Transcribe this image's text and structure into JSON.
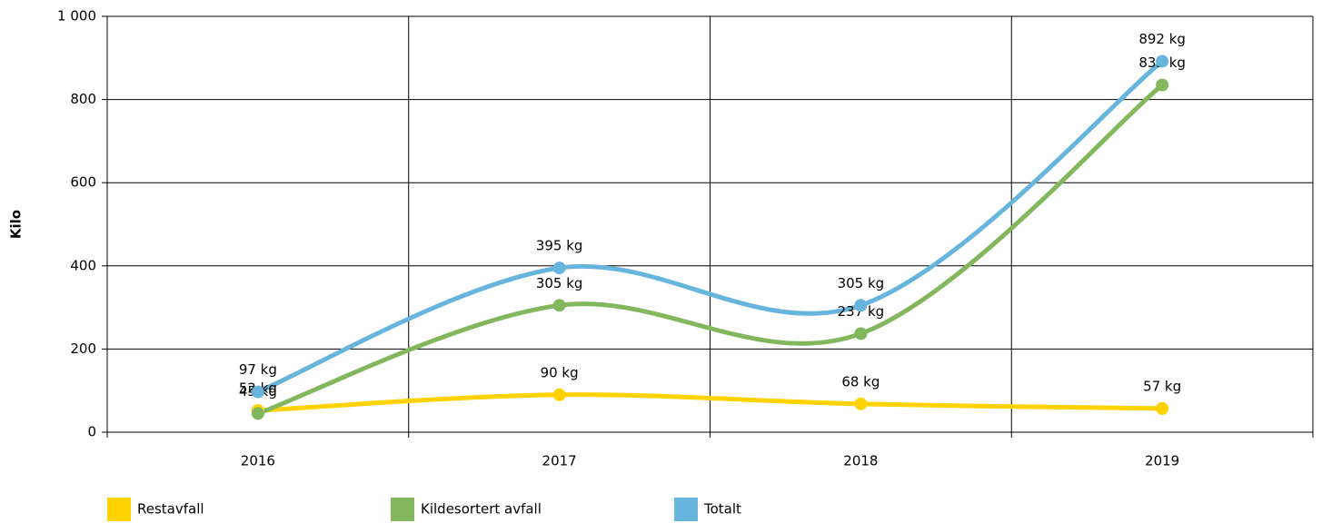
{
  "chart_data": {
    "type": "line",
    "y_label": "Kilo",
    "categories": [
      "2016",
      "2017",
      "2018",
      "2019"
    ],
    "series": [
      {
        "name": "Restavfall",
        "color": "#ffd200",
        "values": [
          52,
          90,
          68,
          57
        ],
        "value_labels": [
          "52 kg",
          "90 kg",
          "68 kg",
          "57 kg"
        ]
      },
      {
        "name": "Kildesortert avfall",
        "color": "#83b75e",
        "values": [
          45,
          305,
          237,
          835
        ],
        "value_labels": [
          "45 kg",
          "305 kg",
          "237 kg",
          "835 kg"
        ]
      },
      {
        "name": "Totalt",
        "color": "#67b5dd",
        "values": [
          97,
          395,
          305,
          892
        ],
        "value_labels": [
          "97 kg",
          "395 kg",
          "305 kg",
          "892 kg"
        ]
      }
    ],
    "ylim": [
      0,
      1000
    ],
    "yticks": [
      0,
      200,
      400,
      600,
      800,
      {
        "value": 1000,
        "label": "1 000"
      }
    ],
    "grid": true,
    "legend": "bottom"
  }
}
